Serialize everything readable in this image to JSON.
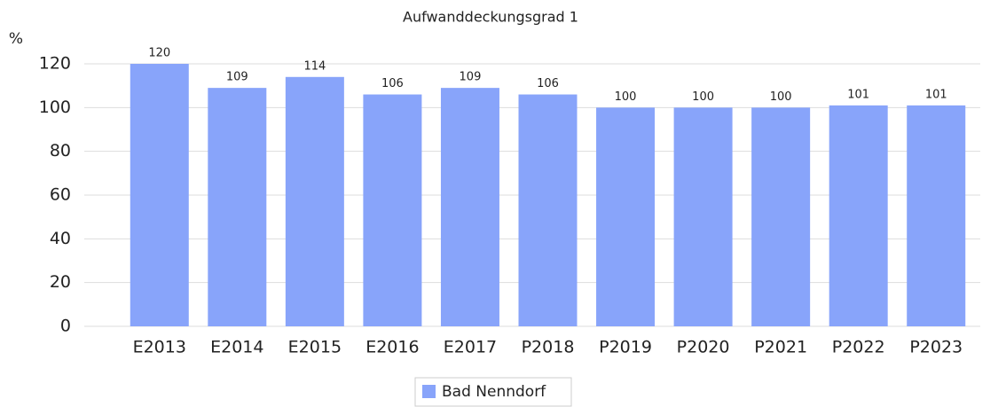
{
  "chart_data": {
    "type": "bar",
    "title": "Aufwanddeckungsgrad 1",
    "y_label": "%",
    "categories": [
      "E2013",
      "E2014",
      "E2015",
      "E2016",
      "E2017",
      "P2018",
      "P2019",
      "P2020",
      "P2021",
      "P2022",
      "P2023"
    ],
    "series": [
      {
        "name": "Bad Nenndorf",
        "color": "#88a4fa",
        "values": [
          120,
          109,
          114,
          106,
          109,
          106,
          100,
          100,
          100,
          101,
          101
        ]
      }
    ],
    "ylim": [
      0,
      120
    ],
    "yticks": [
      0,
      20,
      40,
      60,
      80,
      100,
      120
    ],
    "grid": true,
    "legend": "bottom"
  }
}
